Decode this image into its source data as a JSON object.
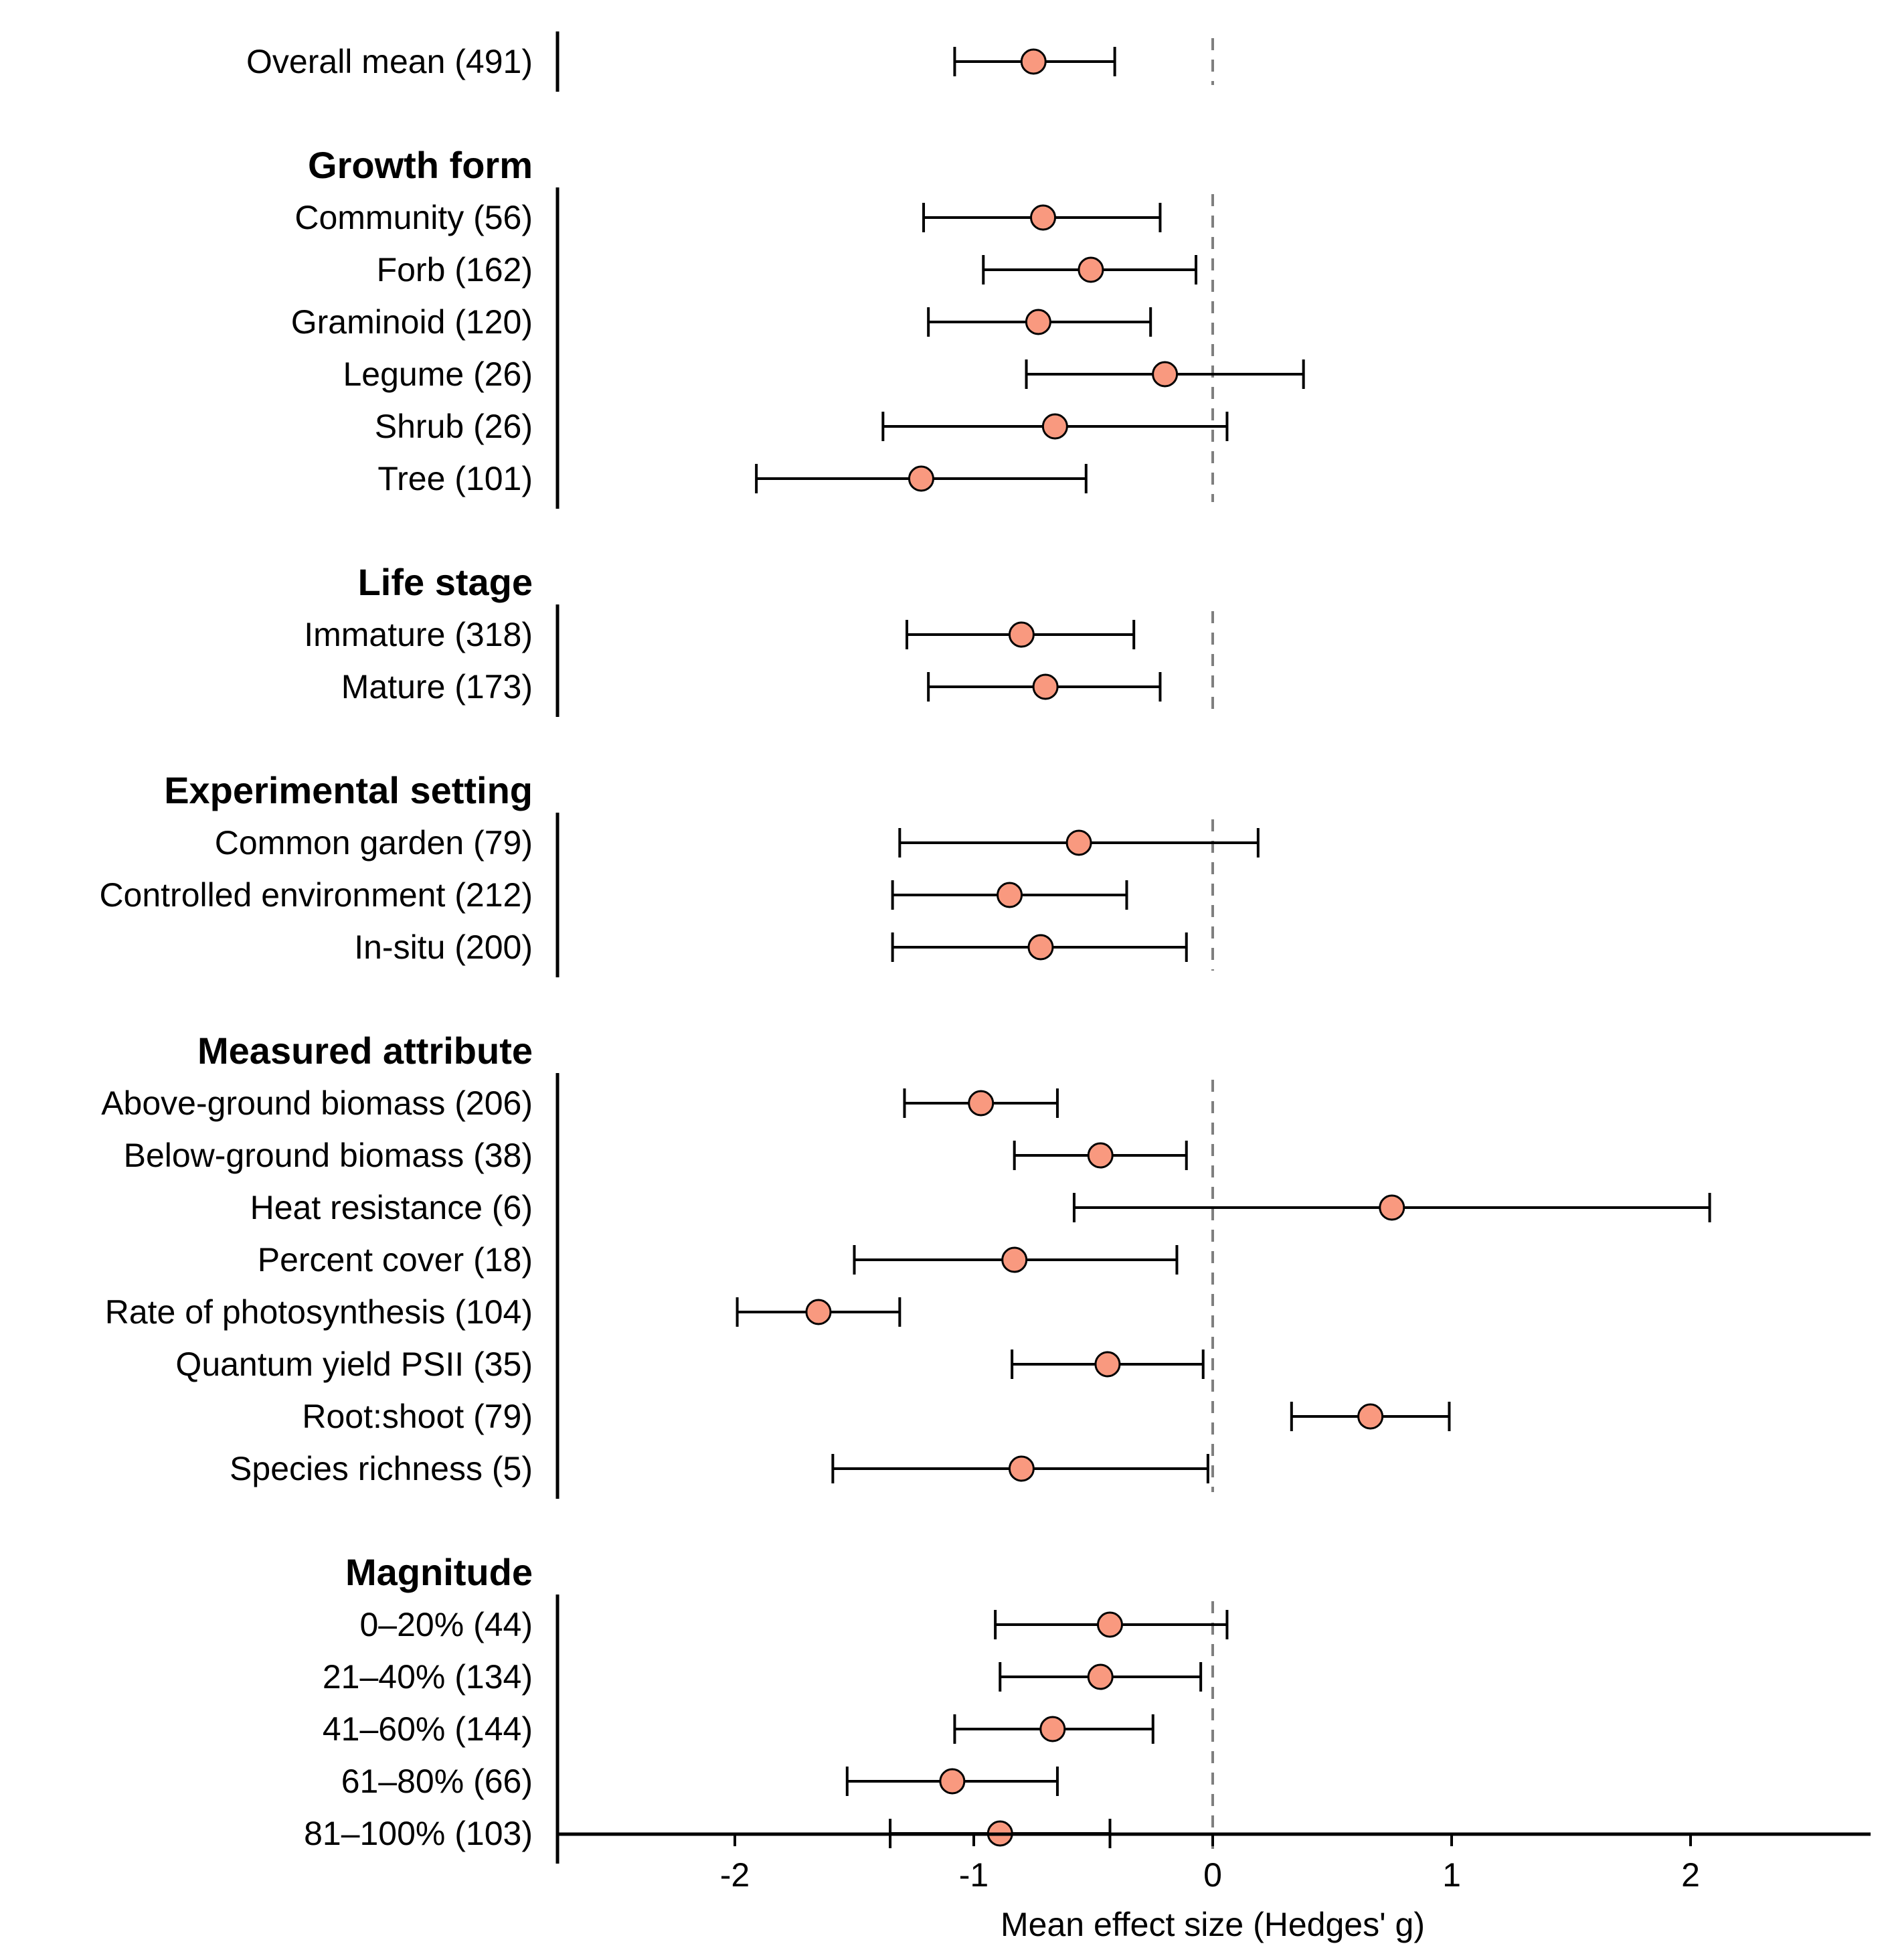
{
  "chart_data": {
    "type": "forest",
    "xlabel": "Mean effect size (Hedges' g)",
    "xlim": [
      -2.75,
      2.75
    ],
    "xticks": [
      -2,
      -1,
      0,
      1,
      2
    ],
    "xtick_labels": [
      "-2",
      "-1",
      "0",
      "1",
      "2"
    ],
    "reference_line": 0,
    "marker_color": "#F9997F",
    "groups": [
      {
        "title": "",
        "rows": [
          {
            "label": "Overall mean (491)",
            "mean": -0.75,
            "lower": -1.08,
            "upper": -0.41
          }
        ]
      },
      {
        "title": "Growth form",
        "rows": [
          {
            "label": "Community (56)",
            "mean": -0.71,
            "lower": -1.21,
            "upper": -0.22
          },
          {
            "label": "Forb (162)",
            "mean": -0.51,
            "lower": -0.96,
            "upper": -0.07
          },
          {
            "label": "Graminoid (120)",
            "mean": -0.73,
            "lower": -1.19,
            "upper": -0.26
          },
          {
            "label": "Legume (26)",
            "mean": -0.2,
            "lower": -0.78,
            "upper": 0.38
          },
          {
            "label": "Shrub (26)",
            "mean": -0.66,
            "lower": -1.38,
            "upper": 0.06
          },
          {
            "label": "Tree (101)",
            "mean": -1.22,
            "lower": -1.91,
            "upper": -0.53
          }
        ]
      },
      {
        "title": "Life stage",
        "rows": [
          {
            "label": "Immature (318)",
            "mean": -0.8,
            "lower": -1.28,
            "upper": -0.33
          },
          {
            "label": "Mature (173)",
            "mean": -0.7,
            "lower": -1.19,
            "upper": -0.22
          }
        ]
      },
      {
        "title": "Experimental setting",
        "rows": [
          {
            "label": "Common garden (79)",
            "mean": -0.56,
            "lower": -1.31,
            "upper": 0.19
          },
          {
            "label": "Controlled environment (212)",
            "mean": -0.85,
            "lower": -1.34,
            "upper": -0.36
          },
          {
            "label": "In-situ (200)",
            "mean": -0.72,
            "lower": -1.34,
            "upper": -0.11
          }
        ]
      },
      {
        "title": "Measured attribute",
        "rows": [
          {
            "label": "Above-ground biomass (206)",
            "mean": -0.97,
            "lower": -1.29,
            "upper": -0.65
          },
          {
            "label": "Below-ground biomass (38)",
            "mean": -0.47,
            "lower": -0.83,
            "upper": -0.11
          },
          {
            "label": "Heat resistance (6)",
            "mean": 0.75,
            "lower": -0.58,
            "upper": 2.08
          },
          {
            "label": "Percent cover (18)",
            "mean": -0.83,
            "lower": -1.5,
            "upper": -0.15
          },
          {
            "label": "Rate of photosynthesis (104)",
            "mean": -1.65,
            "lower": -1.99,
            "upper": -1.31
          },
          {
            "label": "Quantum yield PSII (35)",
            "mean": -0.44,
            "lower": -0.84,
            "upper": -0.04
          },
          {
            "label": "Root:shoot (79)",
            "mean": 0.66,
            "lower": 0.33,
            "upper": 0.99
          },
          {
            "label": "Species richness (5)",
            "mean": -0.8,
            "lower": -1.59,
            "upper": -0.02
          }
        ]
      },
      {
        "title": "Magnitude",
        "rows": [
          {
            "label": "0–20% (44)",
            "mean": -0.43,
            "lower": -0.91,
            "upper": 0.06
          },
          {
            "label": "21–40% (134)",
            "mean": -0.47,
            "lower": -0.89,
            "upper": -0.05
          },
          {
            "label": "41–60% (144)",
            "mean": -0.67,
            "lower": -1.08,
            "upper": -0.25
          },
          {
            "label": "61–80% (66)",
            "mean": -1.09,
            "lower": -1.53,
            "upper": -0.65
          },
          {
            "label": "81–100% (103)",
            "mean": -0.89,
            "lower": -1.35,
            "upper": -0.43
          }
        ]
      }
    ]
  }
}
